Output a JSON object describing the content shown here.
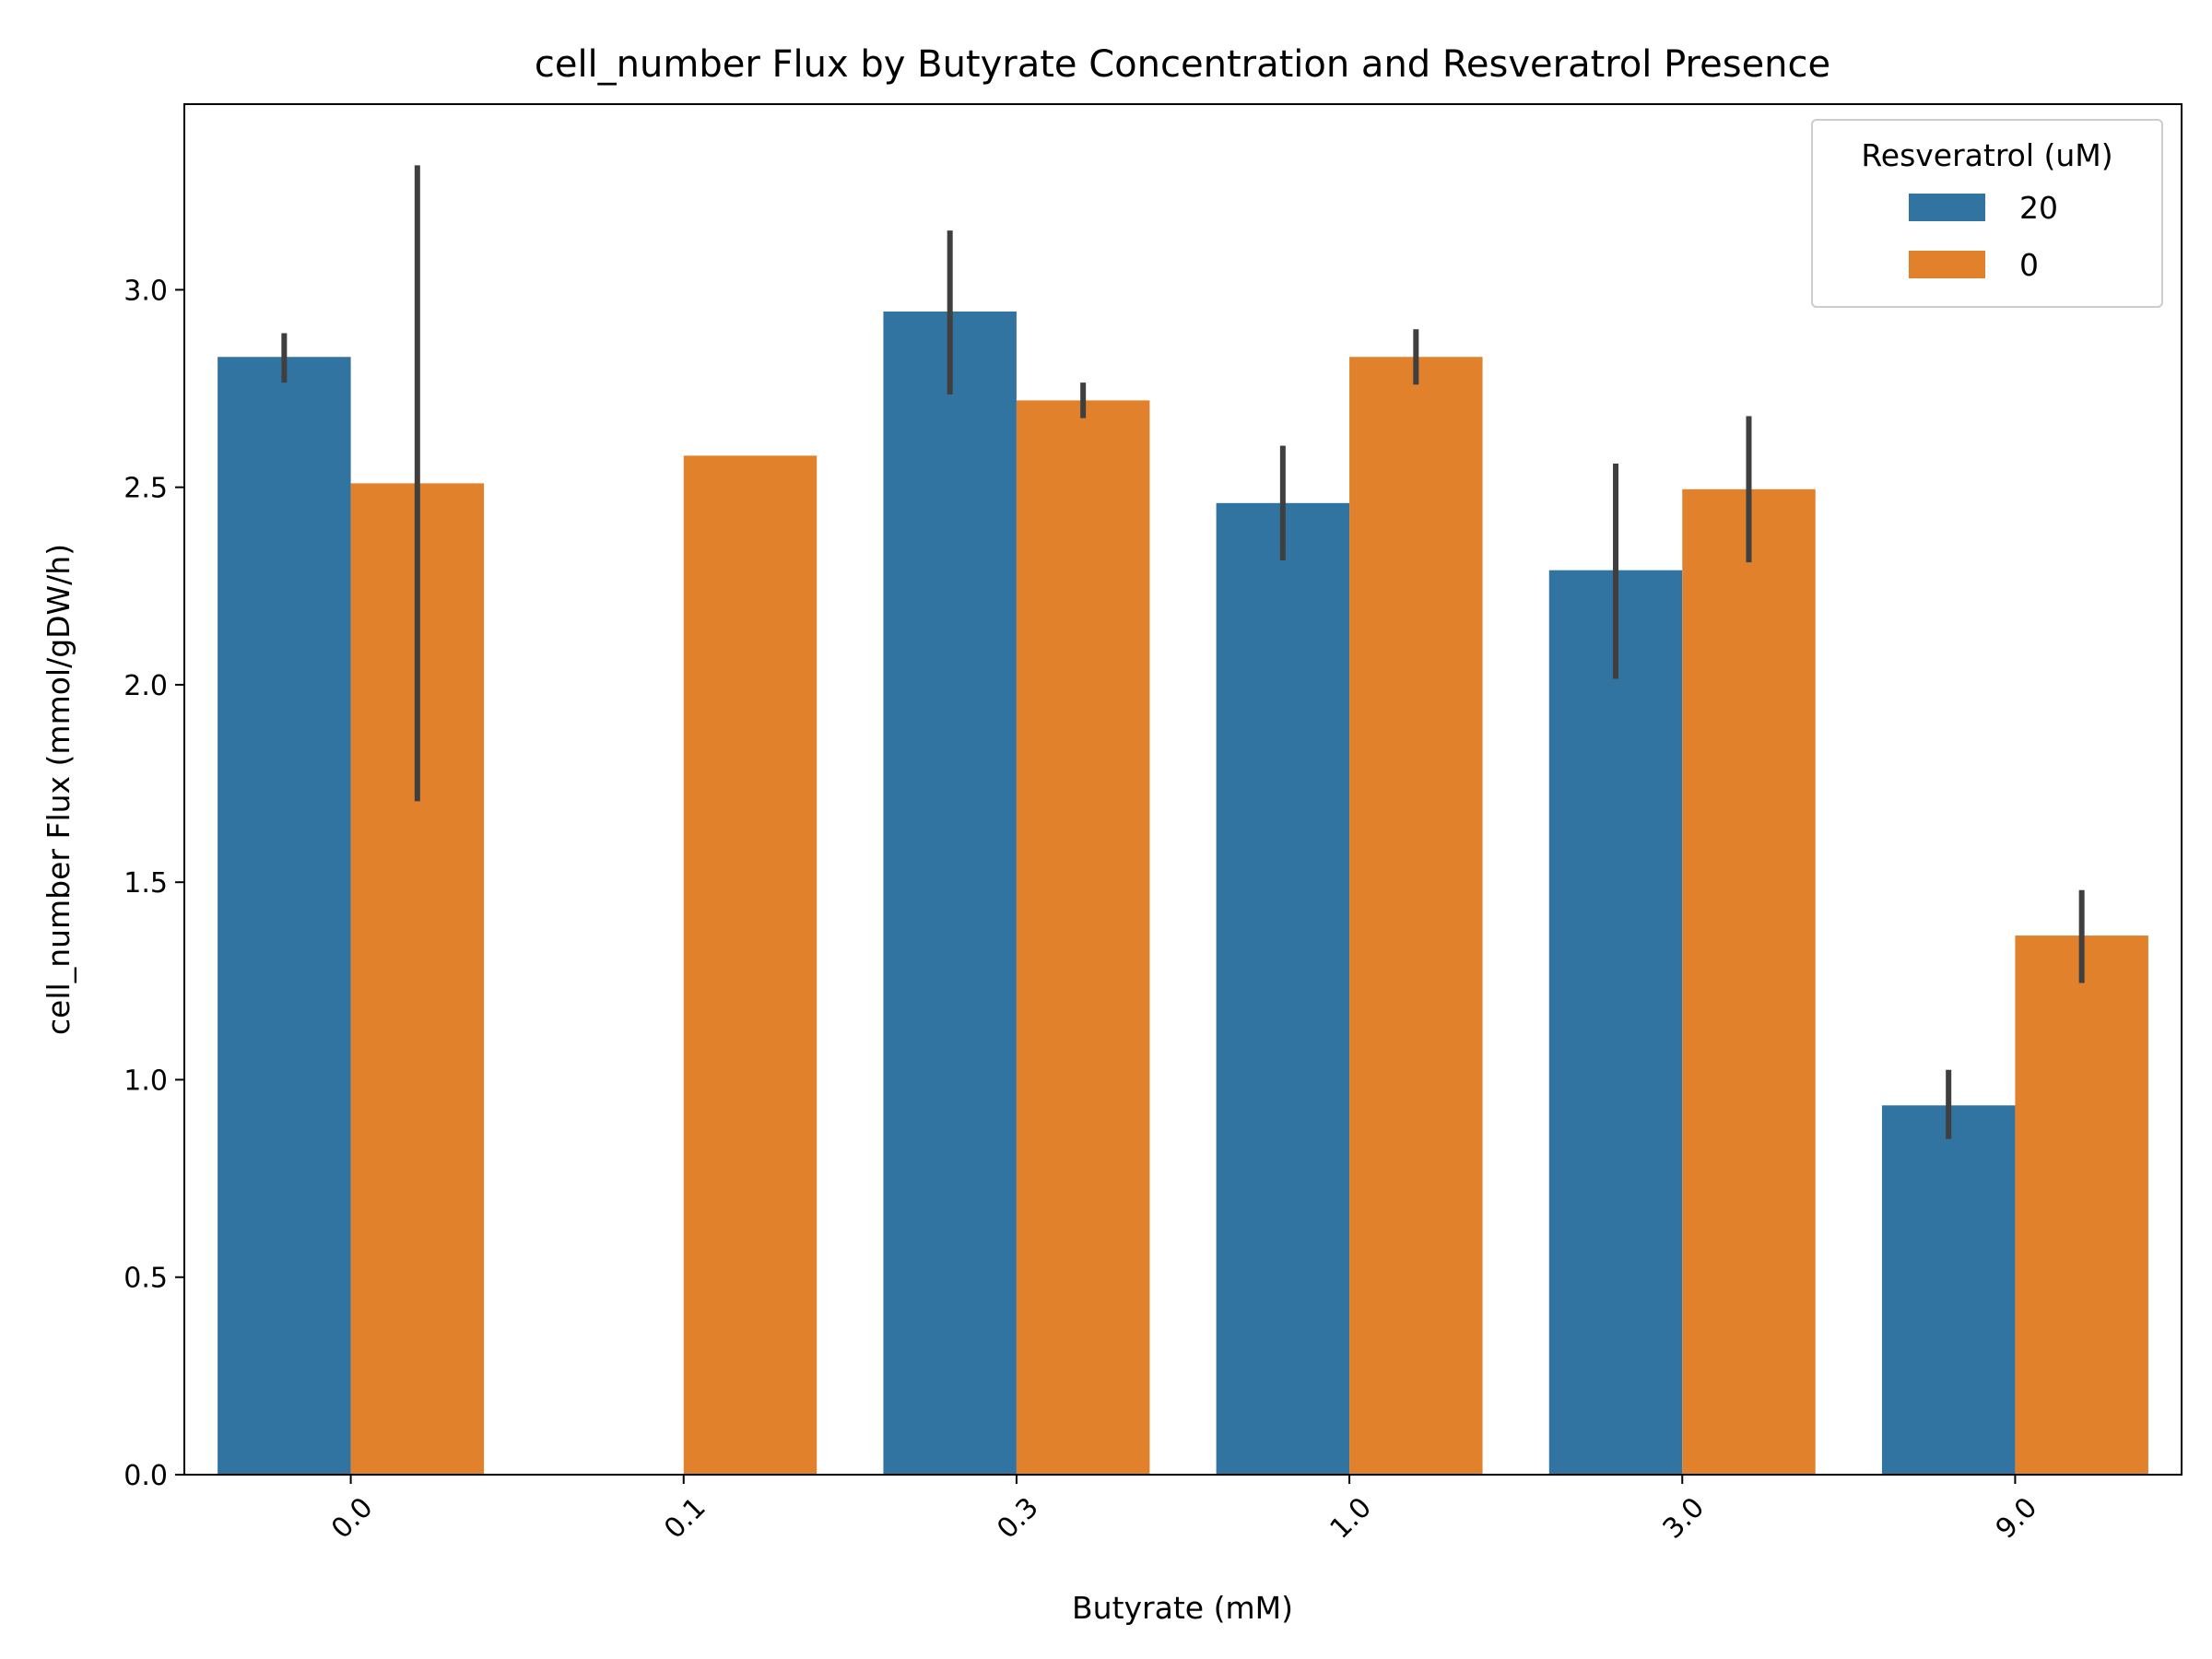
{
  "chart_data": {
    "type": "bar",
    "title": "cell_number Flux by Butyrate Concentration and Resveratrol Presence",
    "xlabel": "Butyrate (mM)",
    "ylabel": "cell_number Flux (mmol/gDW/h)",
    "categories": [
      "0.0",
      "0.1",
      "0.3",
      "1.0",
      "3.0",
      "9.0"
    ],
    "ylim": [
      0,
      3.47
    ],
    "yticks": [
      "0.0",
      "0.5",
      "1.0",
      "1.5",
      "2.0",
      "2.5",
      "3.0"
    ],
    "x_tick_rotation_deg": 45,
    "grid": false,
    "legend": {
      "title": "Resveratrol (uM)",
      "position": "top-right"
    },
    "series": [
      {
        "name": "20",
        "color": "#3274a1",
        "values": [
          2.83,
          null,
          2.945,
          2.46,
          2.29,
          0.935
        ],
        "error_low": [
          2.765,
          null,
          2.735,
          2.315,
          2.015,
          0.85
        ],
        "error_high": [
          2.89,
          null,
          3.15,
          2.605,
          2.56,
          1.025
        ]
      },
      {
        "name": "0",
        "color": "#e1812c",
        "values": [
          2.51,
          2.58,
          2.72,
          2.83,
          2.495,
          1.365
        ],
        "error_low": [
          1.705,
          null,
          2.675,
          2.76,
          2.31,
          1.245
        ],
        "error_high": [
          3.315,
          null,
          2.765,
          2.9,
          2.68,
          1.48
        ]
      }
    ],
    "errorbar_color": "#3f3f3f"
  }
}
